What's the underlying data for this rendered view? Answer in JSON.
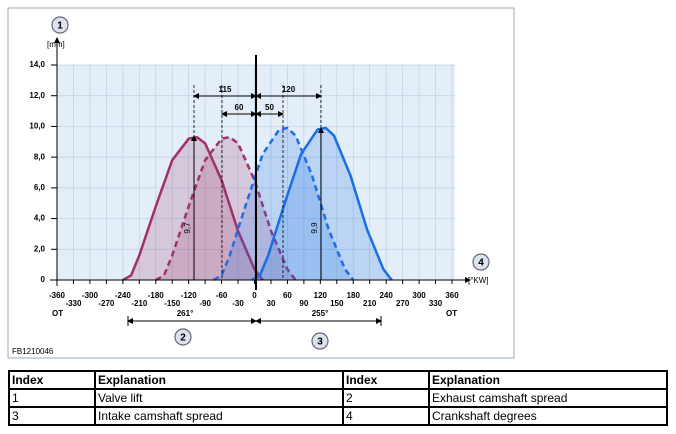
{
  "chart_data": {
    "type": "line",
    "ylabel": "[mm]",
    "xlabel": "[°KW]",
    "xlim": [
      -360,
      360
    ],
    "ylim": [
      0,
      14
    ],
    "xticks": [
      -360,
      -330,
      -300,
      -270,
      -240,
      -210,
      -180,
      -150,
      -120,
      -90,
      -60,
      -30,
      0,
      30,
      60,
      90,
      120,
      150,
      180,
      210,
      240,
      270,
      300,
      330,
      360
    ],
    "yticks": [
      0,
      {
        "value": 2,
        "label": "2,0"
      },
      {
        "value": 4,
        "label": "4,0"
      },
      {
        "value": 6,
        "label": "6,0"
      },
      {
        "value": 8,
        "label": "8,0"
      },
      {
        "value": 10,
        "label": "10,0"
      },
      {
        "value": 12,
        "label": "12,0"
      },
      {
        "value": 14,
        "label": "14,0"
      }
    ],
    "grid": true,
    "x_end_labels": [
      "OT",
      "OT"
    ],
    "annotations": [
      "115",
      "60",
      "50",
      "120",
      "9,7",
      "9,9",
      "261°",
      "255°"
    ],
    "series": [
      {
        "color": "#a0306a",
        "dashed": false,
        "x": [
          -240,
          -225,
          -210,
          -180,
          -150,
          -120,
          -105,
          -90,
          -60,
          -30,
          0,
          15
        ],
        "values": [
          0,
          0.3,
          1.6,
          4.8,
          7.8,
          9.2,
          9.3,
          8.9,
          6.5,
          3.2,
          0.7,
          0
        ]
      },
      {
        "color": "#a0306a",
        "dashed": true,
        "x": [
          -180,
          -165,
          -150,
          -120,
          -90,
          -60,
          -45,
          -30,
          0,
          30,
          60,
          75
        ],
        "values": [
          0,
          0.3,
          1.6,
          4.8,
          7.8,
          9.2,
          9.3,
          8.9,
          6.5,
          3.2,
          0.7,
          0
        ]
      },
      {
        "color": "#1a6ee8",
        "dashed": false,
        "x": [
          -5,
          10,
          25,
          55,
          85,
          115,
          130,
          145,
          175,
          205,
          235,
          250
        ],
        "values": [
          0,
          0.3,
          1.6,
          5,
          8.2,
          9.8,
          9.9,
          9.4,
          6.8,
          3.3,
          0.7,
          0
        ]
      },
      {
        "color": "#1a6ee8",
        "dashed": true,
        "x": [
          -75,
          -60,
          -45,
          -15,
          15,
          45,
          60,
          75,
          105,
          135,
          165,
          180
        ],
        "values": [
          0,
          0.3,
          1.6,
          5,
          8.2,
          9.8,
          9.9,
          9.4,
          6.8,
          3.3,
          0.7,
          0
        ]
      }
    ]
  },
  "figure_id": "FB1210046",
  "callouts": [
    "1",
    "2",
    "3",
    "4"
  ],
  "table": {
    "header": [
      "Index",
      "Explanation",
      "Index",
      "Explanation"
    ],
    "rows": [
      [
        "1",
        "Valve lift",
        "2",
        "Exhaust camshaft spread"
      ],
      [
        "3",
        "Intake camshaft spread",
        "4",
        "Crankshaft degrees"
      ]
    ]
  }
}
